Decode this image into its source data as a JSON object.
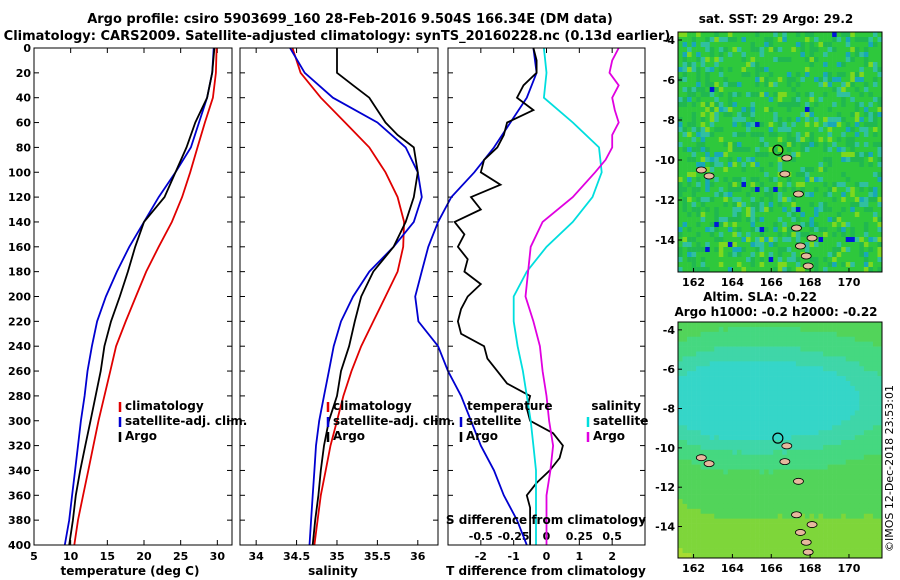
{
  "header": {
    "line1": "Argo profile: csiro 5903699_160 28-Feb-2016 9.504S 166.34E (DM data)",
    "line2": "Climatology: CARS2009. Satellite-adjusted climatology: synTS_20160228.nc (0.13d earlier)"
  },
  "colors": {
    "climatology": "#e00000",
    "satellite": "#0000d0",
    "argo": "#000000",
    "sal_diff_sat": "#00dede",
    "sal_diff_argo": "#e000e0"
  },
  "depth_ticks": [
    "0",
    "20",
    "40",
    "60",
    "80",
    "100",
    "120",
    "140",
    "160",
    "180",
    "200",
    "220",
    "240",
    "260",
    "280",
    "300",
    "320",
    "340",
    "360",
    "380",
    "400"
  ],
  "chart_data": [
    {
      "id": "temperature",
      "type": "line",
      "xlabel": "temperature (deg C)",
      "ylabel": "depth",
      "xlim": [
        5,
        32
      ],
      "ylim": [
        400,
        0
      ],
      "x_ticks": [
        "5",
        "10",
        "15",
        "20",
        "25",
        "30"
      ],
      "legend": [
        {
          "label": "climatology",
          "series": "climatology"
        },
        {
          "label": "satellite-adj. clim.",
          "series": "satellite"
        },
        {
          "label": "Argo",
          "series": "argo"
        }
      ],
      "series": [
        {
          "name": "climatology",
          "depth": [
            0,
            20,
            40,
            60,
            80,
            100,
            120,
            140,
            160,
            180,
            200,
            220,
            240,
            260,
            280,
            300,
            320,
            340,
            360,
            380,
            400
          ],
          "values": [
            29.9,
            29.8,
            29.4,
            28.3,
            27.3,
            26.3,
            25.2,
            23.8,
            22.0,
            20.3,
            18.9,
            17.5,
            16.2,
            15.4,
            14.6,
            13.8,
            13.1,
            12.4,
            11.7,
            11.0,
            10.5
          ]
        },
        {
          "name": "satellite",
          "depth": [
            0,
            20,
            40,
            60,
            80,
            100,
            120,
            140,
            160,
            180,
            200,
            220,
            240,
            260,
            280,
            300,
            320,
            340,
            360,
            380,
            400
          ],
          "values": [
            29.5,
            29.3,
            28.6,
            27.5,
            26.4,
            24.3,
            22.0,
            20.0,
            18.0,
            16.3,
            14.8,
            13.6,
            12.9,
            12.3,
            11.9,
            11.4,
            11.0,
            10.6,
            10.2,
            9.8,
            9.2
          ]
        },
        {
          "name": "argo",
          "depth": [
            0,
            20,
            40,
            60,
            80,
            100,
            120,
            140,
            160,
            180,
            200,
            220,
            240,
            260,
            280,
            300,
            320,
            340,
            360,
            380,
            400
          ],
          "values": [
            29.6,
            29.3,
            28.6,
            27.0,
            25.8,
            24.3,
            22.8,
            20.0,
            18.8,
            17.8,
            16.7,
            15.5,
            14.6,
            14.1,
            13.4,
            12.7,
            12.0,
            11.3,
            10.7,
            10.3,
            9.8
          ]
        }
      ]
    },
    {
      "id": "salinity",
      "type": "line",
      "xlabel": "salinity",
      "ylabel": "depth",
      "xlim": [
        33.8,
        36.25
      ],
      "ylim": [
        400,
        0
      ],
      "x_ticks": [
        "34",
        "34.5",
        "35",
        "35.5",
        "36"
      ],
      "legend": [
        {
          "label": "climatology",
          "series": "climatology"
        },
        {
          "label": "satellite-adj. clim.",
          "series": "satellite"
        },
        {
          "label": "Argo",
          "series": "argo"
        }
      ],
      "series": [
        {
          "name": "climatology",
          "depth": [
            0,
            20,
            40,
            60,
            80,
            100,
            120,
            140,
            160,
            180,
            200,
            220,
            240,
            260,
            280,
            300,
            320,
            340,
            360,
            380,
            400
          ],
          "values": [
            34.45,
            34.55,
            34.8,
            35.1,
            35.4,
            35.6,
            35.75,
            35.83,
            35.82,
            35.75,
            35.6,
            35.45,
            35.3,
            35.18,
            35.08,
            35.0,
            34.92,
            34.86,
            34.8,
            34.76,
            34.72
          ]
        },
        {
          "name": "satellite",
          "depth": [
            0,
            20,
            40,
            60,
            80,
            100,
            120,
            140,
            160,
            180,
            200,
            220,
            240,
            260,
            280,
            300,
            320,
            340,
            360,
            380,
            400
          ],
          "values": [
            34.42,
            34.6,
            34.95,
            35.5,
            35.85,
            36.0,
            36.05,
            35.95,
            35.7,
            35.4,
            35.2,
            35.05,
            34.96,
            34.9,
            34.84,
            34.78,
            34.74,
            34.72,
            34.7,
            34.68,
            34.66
          ]
        },
        {
          "name": "argo",
          "depth": [
            0,
            10,
            20,
            30,
            40,
            50,
            60,
            70,
            80,
            100,
            120,
            140,
            160,
            180,
            200,
            220,
            240,
            260,
            280,
            300,
            320,
            340,
            360,
            380,
            400
          ],
          "values": [
            35.0,
            35.0,
            35.0,
            35.2,
            35.4,
            35.5,
            35.6,
            35.75,
            35.95,
            36.0,
            35.95,
            35.85,
            35.7,
            35.45,
            35.3,
            35.22,
            35.15,
            35.05,
            35.0,
            34.9,
            34.84,
            34.8,
            34.77,
            34.73,
            34.7
          ]
        }
      ]
    },
    {
      "id": "differences",
      "type": "line",
      "xlabel": "T difference from climatology",
      "top_axis_label": "S difference from climatology",
      "ylabel": "depth",
      "xlim": [
        -3,
        3
      ],
      "ylim": [
        400,
        0
      ],
      "x_ticks": [
        "-2",
        "-1",
        "0",
        "1",
        "2"
      ],
      "s_ticks": [
        "-0.5",
        "-0.25",
        "0",
        "0.25",
        "0.5"
      ],
      "s_xlim": [
        -0.75,
        0.75
      ],
      "legend_temperature_title": "temperature",
      "legend_salinity_title": "salinity",
      "legend": [
        {
          "label": "satellite",
          "group": "temperature",
          "series": "t_satellite"
        },
        {
          "label": "Argo",
          "group": "temperature",
          "series": "t_argo"
        },
        {
          "label": "satellite",
          "group": "salinity",
          "series": "s_satellite"
        },
        {
          "label": "Argo",
          "group": "salinity",
          "series": "s_argo"
        }
      ],
      "series": [
        {
          "name": "t_satellite",
          "axis": "T",
          "depth": [
            0,
            20,
            40,
            60,
            80,
            100,
            120,
            140,
            160,
            180,
            200,
            220,
            240,
            260,
            280,
            300,
            320,
            340,
            360,
            380,
            400
          ],
          "values": [
            -0.4,
            -0.3,
            -0.6,
            -1.1,
            -1.6,
            -2.2,
            -2.9,
            -3.3,
            -3.6,
            -3.8,
            -4.0,
            -3.9,
            -3.3,
            -3.0,
            -2.6,
            -2.3,
            -2.0,
            -1.6,
            -1.3,
            -0.9,
            -0.6
          ]
        },
        {
          "name": "t_argo",
          "axis": "T",
          "depth": [
            0,
            10,
            20,
            30,
            40,
            50,
            60,
            70,
            80,
            90,
            100,
            110,
            120,
            130,
            140,
            150,
            160,
            170,
            180,
            190,
            200,
            210,
            220,
            230,
            240,
            250,
            260,
            270,
            280,
            290,
            300,
            310,
            320,
            330,
            340,
            350,
            360,
            370,
            380,
            390,
            400
          ],
          "values": [
            -0.4,
            -0.3,
            -0.3,
            -0.7,
            -0.9,
            -0.4,
            -1.2,
            -1.3,
            -1.5,
            -1.9,
            -2.0,
            -1.4,
            -2.3,
            -2.0,
            -2.8,
            -2.5,
            -2.7,
            -2.4,
            -2.5,
            -2.0,
            -2.4,
            -2.6,
            -2.7,
            -2.6,
            -1.9,
            -1.8,
            -1.5,
            -1.2,
            -0.5,
            -0.6,
            -0.5,
            0.2,
            0.5,
            0.4,
            0.1,
            -0.3,
            -0.6,
            -0.5,
            -0.5,
            -0.5,
            -0.5
          ]
        },
        {
          "name": "s_satellite",
          "axis": "S",
          "depth": [
            0,
            20,
            40,
            60,
            80,
            100,
            120,
            140,
            160,
            180,
            200,
            220,
            240,
            260,
            280,
            300,
            320,
            340,
            360,
            380,
            400
          ],
          "values": [
            -0.02,
            0.0,
            -0.02,
            0.2,
            0.4,
            0.42,
            0.35,
            0.2,
            0.0,
            -0.15,
            -0.25,
            -0.25,
            -0.22,
            -0.18,
            -0.15,
            -0.12,
            -0.1,
            -0.08,
            -0.08,
            -0.08,
            -0.08
          ]
        },
        {
          "name": "s_argo",
          "axis": "S",
          "depth": [
            0,
            10,
            20,
            30,
            40,
            50,
            60,
            70,
            80,
            90,
            100,
            120,
            140,
            160,
            180,
            200,
            220,
            240,
            260,
            280,
            300,
            320,
            340,
            360,
            380,
            400
          ],
          "values": [
            0.55,
            0.5,
            0.48,
            0.55,
            0.5,
            0.52,
            0.55,
            0.5,
            0.5,
            0.45,
            0.37,
            0.2,
            -0.03,
            -0.12,
            -0.14,
            -0.16,
            -0.1,
            -0.05,
            -0.03,
            0.0,
            0.02,
            0.05,
            0.03,
            0.0,
            0.0,
            0.0
          ]
        }
      ]
    }
  ],
  "maps": [
    {
      "id": "sst-map",
      "title": "sat. SST: 29 Argo: 29.2",
      "x_ticks": [
        "162",
        "164",
        "166",
        "168",
        "170"
      ],
      "y_ticks": [
        "-4",
        "-6",
        "-8",
        "-10",
        "-12",
        "-14"
      ],
      "palette": "sst"
    },
    {
      "id": "sla-map",
      "title_line1": "Altim. SLA: -0.22",
      "title_line2": "Argo h1000: -0.2 h2000: -0.22",
      "x_ticks": [
        "162",
        "164",
        "166",
        "168",
        "170"
      ],
      "y_ticks": [
        "-4",
        "-6",
        "-8",
        "-10",
        "-12",
        "-14"
      ],
      "palette": "sla"
    }
  ],
  "watermark": "©IMOS 12-Dec-2018 23:53:01"
}
